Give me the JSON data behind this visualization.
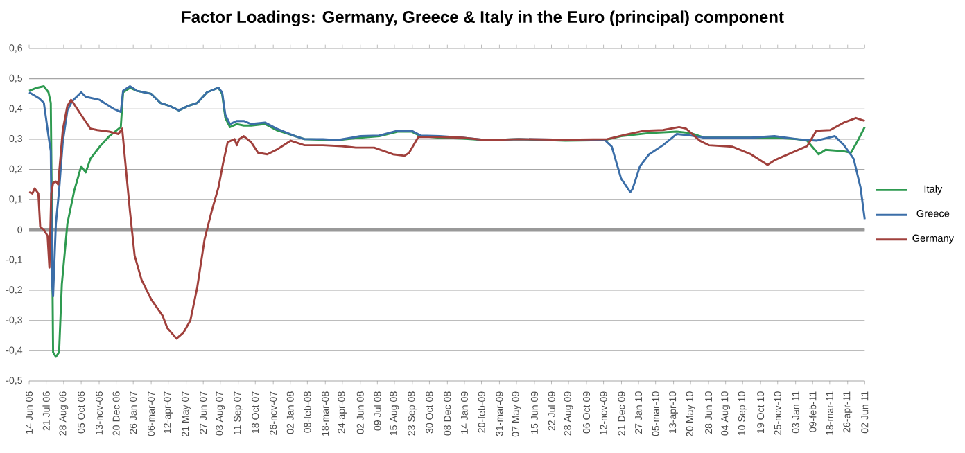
{
  "chart_data": {
    "type": "line",
    "title": "Factor Loadings: Germany, Greece & Italy in the Euro (principal) component",
    "xlim": [
      "2006-06-14",
      "2011-06-02"
    ],
    "xticks": [
      {
        "value": "2006-06-14",
        "label": "14 Jun 06"
      },
      {
        "value": "2006-07-21",
        "label": "21 Jul 06"
      },
      {
        "value": "2006-08-28",
        "label": "28 Aug 06"
      },
      {
        "value": "2006-10-05",
        "label": "05 Oct 06"
      },
      {
        "value": "2006-11-13",
        "label": "13-nov-06"
      },
      {
        "value": "2006-12-20",
        "label": "20 Dec 06"
      },
      {
        "value": "2007-01-26",
        "label": "26 Jan 07"
      },
      {
        "value": "2007-03-06",
        "label": "06-mar-07"
      },
      {
        "value": "2007-04-12",
        "label": "12-apr-07"
      },
      {
        "value": "2007-05-21",
        "label": "21 May 07"
      },
      {
        "value": "2007-06-27",
        "label": "27 Jun 07"
      },
      {
        "value": "2007-08-03",
        "label": "03 Aug 07"
      },
      {
        "value": "2007-09-11",
        "label": "11 Sep 07"
      },
      {
        "value": "2007-10-18",
        "label": "18 Oct 07"
      },
      {
        "value": "2007-11-26",
        "label": "26-nov-07"
      },
      {
        "value": "2008-01-02",
        "label": "02 Jan 08"
      },
      {
        "value": "2008-02-08",
        "label": "08-feb-08"
      },
      {
        "value": "2008-03-18",
        "label": "18-mar-08"
      },
      {
        "value": "2008-04-24",
        "label": "24-apr-08"
      },
      {
        "value": "2008-06-02",
        "label": "02 Jun 08"
      },
      {
        "value": "2008-07-09",
        "label": "09 Jul 08"
      },
      {
        "value": "2008-08-15",
        "label": "15 Aug 08"
      },
      {
        "value": "2008-09-23",
        "label": "23 Sep 08"
      },
      {
        "value": "2008-10-30",
        "label": "30 Oct 08"
      },
      {
        "value": "2008-12-08",
        "label": "08 Dec 08"
      },
      {
        "value": "2009-01-14",
        "label": "14 Jan 09"
      },
      {
        "value": "2009-02-20",
        "label": "20-feb-09"
      },
      {
        "value": "2009-03-31",
        "label": "31-mar-09"
      },
      {
        "value": "2009-05-07",
        "label": "07 May 09"
      },
      {
        "value": "2009-06-15",
        "label": "15 Jun 09"
      },
      {
        "value": "2009-07-22",
        "label": "22 Jul 09"
      },
      {
        "value": "2009-08-28",
        "label": "28 Aug 09"
      },
      {
        "value": "2009-10-06",
        "label": "06 Oct 09"
      },
      {
        "value": "2009-11-12",
        "label": "12-nov-09"
      },
      {
        "value": "2009-12-21",
        "label": "21 Dec 09"
      },
      {
        "value": "2010-01-27",
        "label": "27 Jan 10"
      },
      {
        "value": "2010-03-05",
        "label": "05-mar-10"
      },
      {
        "value": "2010-04-13",
        "label": "13-apr-10"
      },
      {
        "value": "2010-05-20",
        "label": "20 May 10"
      },
      {
        "value": "2010-06-28",
        "label": "28 Jun 10"
      },
      {
        "value": "2010-08-04",
        "label": "04 Aug 10"
      },
      {
        "value": "2010-09-10",
        "label": "10 Sep 10"
      },
      {
        "value": "2010-10-19",
        "label": "19 Oct 10"
      },
      {
        "value": "2010-11-25",
        "label": "25-nov-10"
      },
      {
        "value": "2011-01-03",
        "label": "03 Jan 11"
      },
      {
        "value": "2011-02-09",
        "label": "09-feb-11"
      },
      {
        "value": "2011-03-18",
        "label": "18-mar-11"
      },
      {
        "value": "2011-04-26",
        "label": "26-apr-11"
      },
      {
        "value": "2011-06-02",
        "label": "02 Jun 11"
      }
    ],
    "ylim": [
      -0.5,
      0.6
    ],
    "yticks": [
      {
        "value": -0.5,
        "label": "-0,5"
      },
      {
        "value": -0.4,
        "label": "-0,4"
      },
      {
        "value": -0.3,
        "label": "-0,3"
      },
      {
        "value": -0.2,
        "label": "-0,2"
      },
      {
        "value": -0.1,
        "label": "-0,1"
      },
      0,
      {
        "value": 0.1,
        "label": "0,1"
      },
      {
        "value": 0.2,
        "label": "0,2"
      },
      {
        "value": 0.3,
        "label": "0,3"
      },
      {
        "value": 0.4,
        "label": "0,4"
      },
      {
        "value": 0.5,
        "label": "0,5"
      },
      {
        "value": 0.6,
        "label": "0,6"
      }
    ],
    "grid": "y",
    "legend": "right",
    "marker": "none",
    "line_style": "solid",
    "series": [
      {
        "name": "Italy",
        "color": "#2e9a50",
        "x": [
          "2006-06-14",
          "2006-07-01",
          "2006-07-16",
          "2006-07-26",
          "2006-07-31",
          "2006-08-03",
          "2006-08-05",
          "2006-08-11",
          "2006-08-18",
          "2006-08-24",
          "2006-09-05",
          "2006-09-20",
          "2006-10-05",
          "2006-10-15",
          "2006-10-25",
          "2006-11-14",
          "2006-12-05",
          "2006-12-30",
          "2007-01-04",
          "2007-01-19",
          "2007-02-03",
          "2007-03-06",
          "2007-03-26",
          "2007-04-15",
          "2007-05-05",
          "2007-05-25",
          "2007-06-14",
          "2007-07-05",
          "2007-07-30",
          "2007-08-07",
          "2007-08-14",
          "2007-08-24",
          "2007-09-08",
          "2007-09-23",
          "2007-10-09",
          "2007-11-08",
          "2007-12-03",
          "2008-01-13",
          "2008-02-02",
          "2008-03-13",
          "2008-04-13",
          "2008-06-02",
          "2008-07-13",
          "2008-08-22",
          "2008-09-21",
          "2008-10-11",
          "2008-11-21",
          "2009-01-10",
          "2009-03-02",
          "2009-05-12",
          "2009-08-21",
          "2009-11-15",
          "2009-12-20",
          "2010-02-19",
          "2010-04-20",
          "2010-05-20",
          "2010-06-19",
          "2010-09-28",
          "2010-11-18",
          "2011-01-07",
          "2011-01-28",
          "2011-02-22",
          "2011-03-09",
          "2011-04-18",
          "2011-05-03",
          "2011-05-18",
          "2011-06-02"
        ],
        "values": [
          0.46,
          0.47,
          0.475,
          0.455,
          0.42,
          -0.045,
          -0.405,
          -0.42,
          -0.405,
          -0.18,
          0.02,
          0.13,
          0.21,
          0.19,
          0.235,
          0.275,
          0.31,
          0.34,
          0.455,
          0.47,
          0.46,
          0.45,
          0.42,
          0.41,
          0.395,
          0.41,
          0.42,
          0.455,
          0.47,
          0.45,
          0.37,
          0.34,
          0.35,
          0.345,
          0.345,
          0.35,
          0.33,
          0.31,
          0.3,
          0.298,
          0.297,
          0.305,
          0.31,
          0.325,
          0.325,
          0.31,
          0.305,
          0.302,
          0.297,
          0.3,
          0.295,
          0.297,
          0.31,
          0.32,
          0.325,
          0.32,
          0.305,
          0.305,
          0.305,
          0.3,
          0.295,
          0.25,
          0.265,
          0.26,
          0.255,
          0.295,
          0.34
        ]
      },
      {
        "name": "Greece",
        "color": "#3b6ea8",
        "x": [
          "2006-06-14",
          "2006-07-06",
          "2006-07-16",
          "2006-07-26",
          "2006-07-31",
          "2006-08-03",
          "2006-08-05",
          "2006-08-11",
          "2006-08-18",
          "2006-08-26",
          "2006-09-05",
          "2006-09-15",
          "2006-10-05",
          "2006-10-15",
          "2006-11-14",
          "2006-12-15",
          "2006-12-30",
          "2007-01-04",
          "2007-01-19",
          "2007-02-03",
          "2007-03-06",
          "2007-03-26",
          "2007-04-15",
          "2007-05-05",
          "2007-05-25",
          "2007-06-14",
          "2007-07-05",
          "2007-07-30",
          "2007-08-07",
          "2007-08-14",
          "2007-08-24",
          "2007-09-08",
          "2007-09-23",
          "2007-10-09",
          "2007-11-08",
          "2007-12-03",
          "2008-01-13",
          "2008-02-02",
          "2008-03-13",
          "2008-04-13",
          "2008-06-02",
          "2008-07-13",
          "2008-08-22",
          "2008-09-21",
          "2008-10-11",
          "2008-11-21",
          "2009-01-10",
          "2009-03-02",
          "2009-05-12",
          "2009-08-21",
          "2009-11-15",
          "2009-11-30",
          "2009-12-20",
          "2010-01-09",
          "2010-01-14",
          "2010-01-30",
          "2010-02-19",
          "2010-03-21",
          "2010-04-20",
          "2010-05-20",
          "2010-06-19",
          "2010-09-28",
          "2010-11-18",
          "2011-01-07",
          "2011-02-17",
          "2011-03-29",
          "2011-04-18",
          "2011-05-09",
          "2011-05-24",
          "2011-06-02"
        ],
        "values": [
          0.455,
          0.435,
          0.42,
          0.31,
          0.26,
          -0.18,
          -0.22,
          0.02,
          0.13,
          0.29,
          0.395,
          0.425,
          0.455,
          0.44,
          0.43,
          0.4,
          0.39,
          0.46,
          0.475,
          0.46,
          0.45,
          0.42,
          0.41,
          0.395,
          0.41,
          0.42,
          0.455,
          0.47,
          0.455,
          0.38,
          0.35,
          0.36,
          0.36,
          0.35,
          0.355,
          0.335,
          0.31,
          0.3,
          0.3,
          0.297,
          0.31,
          0.312,
          0.328,
          0.328,
          0.312,
          0.31,
          0.305,
          0.297,
          0.3,
          0.298,
          0.297,
          0.275,
          0.17,
          0.125,
          0.135,
          0.21,
          0.25,
          0.28,
          0.317,
          0.312,
          0.305,
          0.305,
          0.31,
          0.3,
          0.295,
          0.31,
          0.28,
          0.235,
          0.14,
          0.035
        ]
      },
      {
        "name": "Germany",
        "color": "#a0403c",
        "x": [
          "2006-06-14",
          "2006-06-21",
          "2006-06-26",
          "2006-07-04",
          "2006-07-08",
          "2006-07-16",
          "2006-07-24",
          "2006-07-28",
          "2006-08-01",
          "2006-08-05",
          "2006-08-11",
          "2006-08-16",
          "2006-08-26",
          "2006-09-05",
          "2006-09-13",
          "2006-09-20",
          "2006-10-05",
          "2006-10-25",
          "2006-11-09",
          "2006-12-05",
          "2006-12-25",
          "2007-01-02",
          "2007-01-09",
          "2007-01-19",
          "2007-01-29",
          "2007-02-13",
          "2007-03-06",
          "2007-03-31",
          "2007-04-10",
          "2007-04-30",
          "2007-05-15",
          "2007-05-30",
          "2007-06-14",
          "2007-06-30",
          "2007-07-15",
          "2007-07-30",
          "2007-08-09",
          "2007-08-19",
          "2007-09-03",
          "2007-09-08",
          "2007-09-13",
          "2007-09-23",
          "2007-10-09",
          "2007-10-24",
          "2007-11-13",
          "2007-12-03",
          "2008-01-03",
          "2008-02-02",
          "2008-03-13",
          "2008-04-23",
          "2008-05-23",
          "2008-07-02",
          "2008-08-12",
          "2008-09-06",
          "2008-09-16",
          "2008-10-06",
          "2008-11-21",
          "2009-01-10",
          "2009-03-02",
          "2009-05-12",
          "2009-08-21",
          "2009-11-20",
          "2009-12-30",
          "2010-02-09",
          "2010-03-21",
          "2010-04-25",
          "2010-05-10",
          "2010-06-09",
          "2010-06-29",
          "2010-08-19",
          "2010-09-28",
          "2010-11-03",
          "2010-11-18",
          "2010-12-18",
          "2011-01-28",
          "2011-02-17",
          "2011-03-19",
          "2011-04-18",
          "2011-05-14",
          "2011-06-02"
        ],
        "values": [
          0.125,
          0.12,
          0.137,
          0.12,
          0.01,
          0.0,
          -0.02,
          -0.125,
          0.12,
          0.155,
          0.16,
          0.15,
          0.33,
          0.41,
          0.43,
          0.415,
          0.38,
          0.335,
          0.33,
          0.325,
          0.317,
          0.335,
          0.22,
          0.06,
          -0.085,
          -0.165,
          -0.23,
          -0.285,
          -0.325,
          -0.36,
          -0.34,
          -0.3,
          -0.19,
          -0.03,
          0.06,
          0.14,
          0.22,
          0.29,
          0.3,
          0.28,
          0.3,
          0.31,
          0.29,
          0.255,
          0.25,
          0.265,
          0.295,
          0.28,
          0.28,
          0.277,
          0.272,
          0.272,
          0.25,
          0.245,
          0.255,
          0.307,
          0.307,
          0.305,
          0.297,
          0.3,
          0.298,
          0.3,
          0.315,
          0.328,
          0.33,
          0.34,
          0.335,
          0.295,
          0.28,
          0.275,
          0.25,
          0.215,
          0.23,
          0.25,
          0.277,
          0.328,
          0.33,
          0.355,
          0.37,
          0.36
        ]
      }
    ]
  }
}
